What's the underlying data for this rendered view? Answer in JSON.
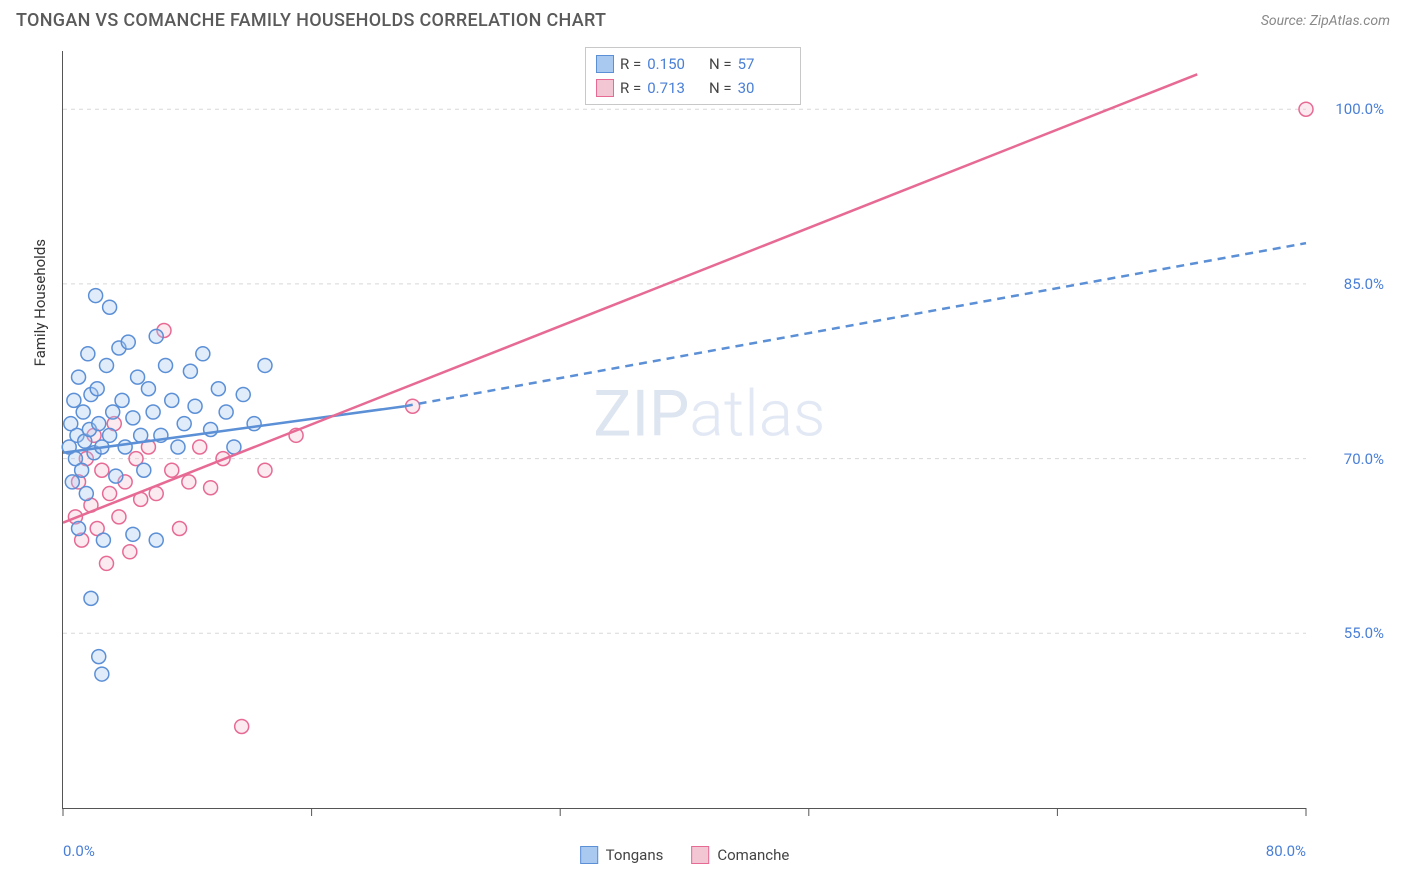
{
  "header": {
    "title": "TONGAN VS COMANCHE FAMILY HOUSEHOLDS CORRELATION CHART",
    "source": "Source: ZipAtlas.com"
  },
  "chart": {
    "type": "scatter",
    "ylabel": "Family Households",
    "xlim": [
      0,
      80
    ],
    "ylim": [
      40,
      105
    ],
    "x_ticks": [
      0,
      16,
      32,
      48,
      64,
      80
    ],
    "x_tick_labels": {
      "0": "0.0%",
      "80": "80.0%"
    },
    "y_ticks": [
      55,
      70,
      85,
      100
    ],
    "y_tick_labels": {
      "55": "55.0%",
      "70": "70.0%",
      "85": "85.0%",
      "100": "100.0%"
    },
    "grid_color": "#d8d8d8",
    "background_color": "#ffffff",
    "marker_radius": 7,
    "watermark": {
      "part1": "ZIP",
      "part2": "atlas"
    },
    "series": {
      "tongans": {
        "label": "Tongans",
        "fill": "#a9c9f0",
        "stroke": "#5b8fd6",
        "r": "0.150",
        "n": "57",
        "trend": {
          "x1": 0,
          "y1": 70.5,
          "x2": 22,
          "y2": 74.5,
          "dash_from_x": 22,
          "x3": 80,
          "y3": 88.5
        },
        "points": [
          [
            0.4,
            71
          ],
          [
            0.5,
            73
          ],
          [
            0.6,
            68
          ],
          [
            0.7,
            75
          ],
          [
            0.8,
            70
          ],
          [
            0.9,
            72
          ],
          [
            1.0,
            64
          ],
          [
            1.0,
            77
          ],
          [
            1.2,
            69
          ],
          [
            1.3,
            74
          ],
          [
            1.4,
            71.5
          ],
          [
            1.5,
            67
          ],
          [
            1.6,
            79
          ],
          [
            1.7,
            72.5
          ],
          [
            1.8,
            75.5
          ],
          [
            2.0,
            70.5
          ],
          [
            2.1,
            84
          ],
          [
            2.2,
            76
          ],
          [
            2.3,
            73
          ],
          [
            2.5,
            71
          ],
          [
            2.6,
            63
          ],
          [
            2.8,
            78
          ],
          [
            3.0,
            83
          ],
          [
            3.0,
            72
          ],
          [
            3.2,
            74
          ],
          [
            3.4,
            68.5
          ],
          [
            3.6,
            79.5
          ],
          [
            3.8,
            75
          ],
          [
            4.0,
            71
          ],
          [
            4.2,
            80
          ],
          [
            4.5,
            73.5
          ],
          [
            4.8,
            77
          ],
          [
            5.0,
            72
          ],
          [
            5.2,
            69
          ],
          [
            5.5,
            76
          ],
          [
            5.8,
            74
          ],
          [
            6.0,
            80.5
          ],
          [
            6.3,
            72
          ],
          [
            6.6,
            78
          ],
          [
            7.0,
            75
          ],
          [
            7.4,
            71
          ],
          [
            7.8,
            73
          ],
          [
            8.2,
            77.5
          ],
          [
            8.5,
            74.5
          ],
          [
            9.0,
            79
          ],
          [
            9.5,
            72.5
          ],
          [
            10.0,
            76
          ],
          [
            10.5,
            74
          ],
          [
            11.0,
            71
          ],
          [
            11.6,
            75.5
          ],
          [
            12.3,
            73
          ],
          [
            13.0,
            78
          ],
          [
            1.8,
            58
          ],
          [
            2.3,
            53
          ],
          [
            2.5,
            51.5
          ],
          [
            4.5,
            63.5
          ],
          [
            6.0,
            63
          ]
        ]
      },
      "comanche": {
        "label": "Comanche",
        "fill": "#f3c6d4",
        "stroke": "#e76a94",
        "r": "0.713",
        "n": "30",
        "trend": {
          "x1": 0,
          "y1": 64.5,
          "x2": 73,
          "y2": 103
        },
        "points": [
          [
            0.8,
            65
          ],
          [
            1.0,
            68
          ],
          [
            1.2,
            63
          ],
          [
            1.5,
            70
          ],
          [
            1.8,
            66
          ],
          [
            2.0,
            72
          ],
          [
            2.2,
            64
          ],
          [
            2.5,
            69
          ],
          [
            2.8,
            61
          ],
          [
            3.0,
            67
          ],
          [
            3.3,
            73
          ],
          [
            3.6,
            65
          ],
          [
            4.0,
            68
          ],
          [
            4.3,
            62
          ],
          [
            4.7,
            70
          ],
          [
            5.0,
            66.5
          ],
          [
            5.5,
            71
          ],
          [
            6.0,
            67
          ],
          [
            6.5,
            81
          ],
          [
            7.0,
            69
          ],
          [
            7.5,
            64
          ],
          [
            8.1,
            68
          ],
          [
            8.8,
            71
          ],
          [
            9.5,
            67.5
          ],
          [
            10.3,
            70
          ],
          [
            11.5,
            47
          ],
          [
            13.0,
            69
          ],
          [
            15.0,
            72
          ],
          [
            22.5,
            74.5
          ],
          [
            80,
            100
          ]
        ]
      }
    },
    "legend_bottom": [
      "tongans",
      "comanche"
    ]
  }
}
